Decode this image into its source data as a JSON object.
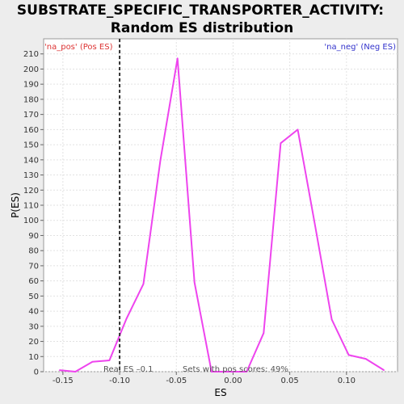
{
  "chart_data": {
    "type": "line",
    "title_line1": "SUBSTRATE_SPECIFIC_TRANSPORTER_ACTIVITY:",
    "title_line2": "Random ES distribution",
    "xlabel": "ES",
    "ylabel": "P(ES)",
    "xlim": [
      -0.167,
      0.145
    ],
    "ylim": [
      0,
      220
    ],
    "x_ticks": [
      -0.15,
      -0.1,
      -0.05,
      0.0,
      0.05,
      0.1
    ],
    "x_tick_labels": [
      "-0.15",
      "-0.10",
      "-0.05",
      "0.00",
      "0.05",
      "0.10"
    ],
    "y_ticks": [
      0,
      10,
      20,
      30,
      40,
      50,
      60,
      70,
      80,
      90,
      100,
      110,
      120,
      130,
      140,
      150,
      160,
      170,
      180,
      190,
      200,
      210
    ],
    "grid": true,
    "series": [
      {
        "color": "#ee44ee",
        "x": [
          -0.153,
          -0.139,
          -0.124,
          -0.109,
          -0.094,
          -0.079,
          -0.064,
          -0.049,
          -0.034,
          -0.019,
          -0.004,
          0.012,
          0.027,
          0.042,
          0.057,
          0.072,
          0.087,
          0.102,
          0.117,
          0.133
        ],
        "y": [
          1,
          0,
          6.5,
          7.5,
          35,
          58,
          140,
          207,
          59,
          0,
          0,
          0,
          25.5,
          151,
          160,
          98,
          34.5,
          11,
          8.5,
          1
        ]
      }
    ],
    "real_es": -0.1,
    "corner_left": "'na_pos' (Pos ES)",
    "corner_left_color": "#dd3333",
    "corner_right": "'na_neg' (Neg ES)",
    "corner_right_color": "#3333cc",
    "real_es_label": "Real ES –0.1",
    "pos_scores_label": "Sets with pos scores: 49%"
  }
}
